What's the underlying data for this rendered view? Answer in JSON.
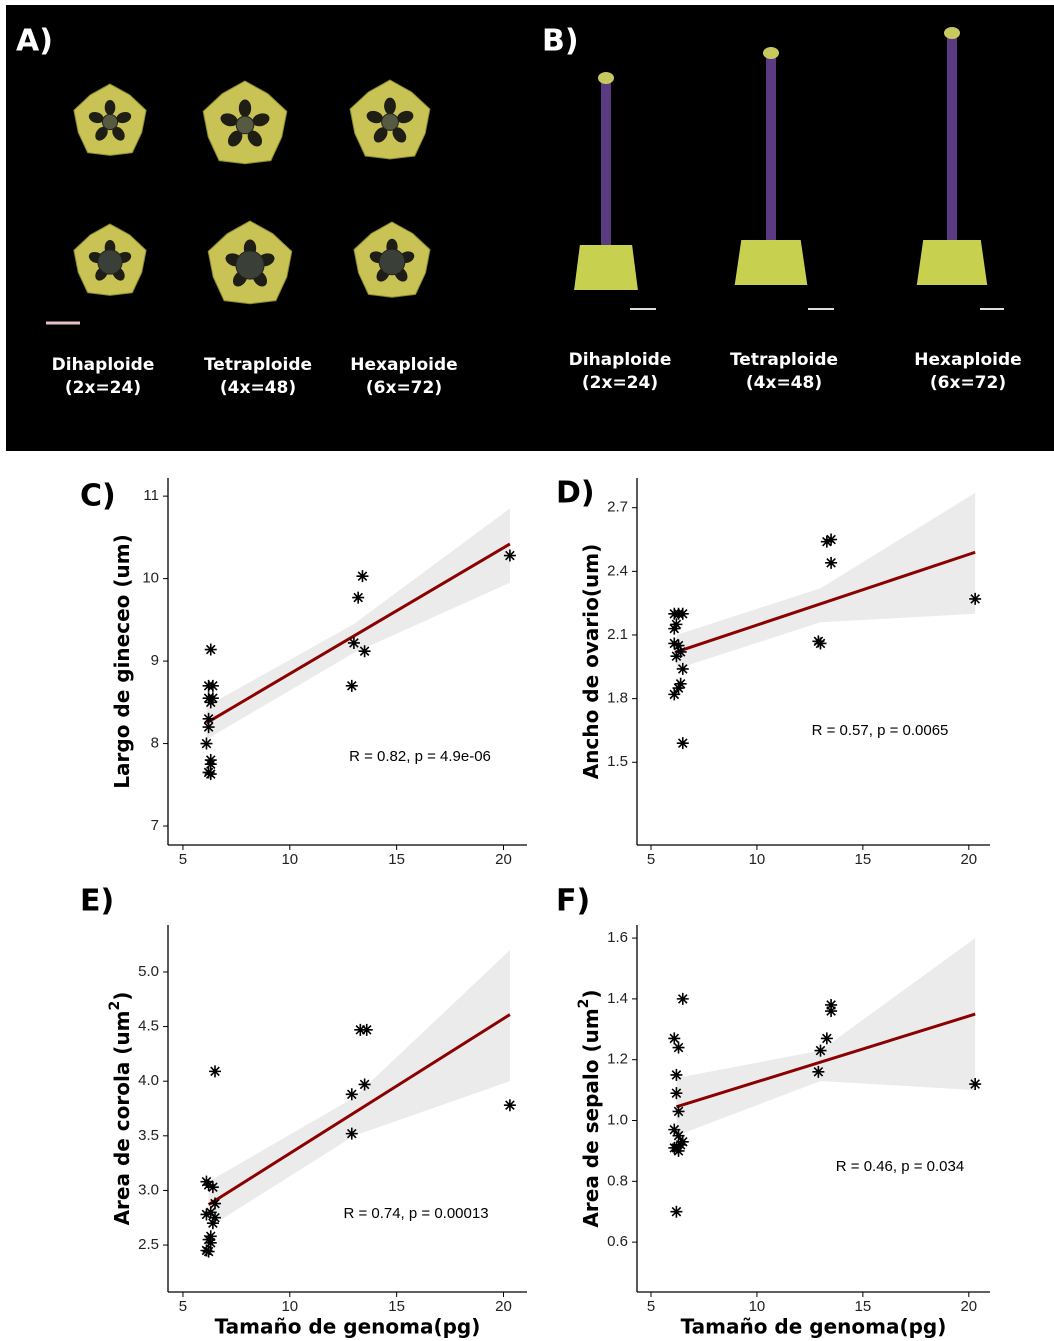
{
  "photo_panels": [
    {
      "label": "A)",
      "items": [
        {
          "name": "Dihaploide",
          "ploidy": "(2x=24)"
        },
        {
          "name": "Tetraploide",
          "ploidy": "(4x=48)"
        },
        {
          "name": "Hexaploide",
          "ploidy": "(6x=72)"
        }
      ]
    },
    {
      "label": "B)",
      "items": [
        {
          "name": "Dihaploide",
          "ploidy": "(2x=24)"
        },
        {
          "name": "Tetraploide",
          "ploidy": "(4x=48)"
        },
        {
          "name": "Hexaploide",
          "ploidy": "(6x=72)"
        }
      ]
    }
  ],
  "chart_data": [
    {
      "type": "scatter",
      "label": "C)",
      "ylabel": "Largo de gineceo (um)",
      "annotation": "R = 0.82, p = 4.9e-06",
      "color": "#000000",
      "x": [
        6.3,
        6.2,
        6.4,
        6.2,
        6.3,
        6.4,
        6.2,
        6.2,
        6.1,
        6.3,
        6.3,
        6.2,
        6.3,
        12.9,
        13.0,
        13.2,
        13.4,
        13.5,
        20.3
      ],
      "y": [
        9.14,
        8.7,
        8.7,
        8.55,
        8.5,
        8.55,
        8.3,
        8.2,
        8.0,
        7.8,
        7.75,
        7.65,
        7.63,
        8.7,
        9.22,
        9.77,
        10.03,
        9.12,
        10.28
      ],
      "fit": {
        "color": "#8b0000",
        "x": [
          6.1,
          20.3
        ],
        "y": [
          8.25,
          10.42
        ]
      },
      "band": {
        "color": "#ebebeb",
        "x": [
          6.1,
          13,
          20.3
        ],
        "upper": [
          8.45,
          9.45,
          10.85
        ],
        "lower": [
          8.05,
          9.1,
          9.95
        ]
      },
      "xlim": [
        4.3,
        21.1
      ],
      "ylim": [
        6.77,
        11.22
      ],
      "xticks": [
        5,
        10,
        15,
        20
      ],
      "yticks": [
        7,
        8,
        9,
        10,
        11
      ]
    },
    {
      "type": "scatter",
      "label": "D)",
      "ylabel": "Ancho de ovario(um)",
      "annotation": "R = 0.57, p = 0.0065",
      "color": "#000000",
      "x": [
        6.1,
        6.3,
        6.5,
        6.2,
        6.1,
        6.1,
        6.3,
        6.4,
        6.2,
        6.5,
        6.4,
        6.3,
        6.1,
        6.5,
        12.9,
        13.0,
        13.3,
        13.5,
        13.5,
        20.3
      ],
      "y": [
        2.2,
        2.2,
        2.2,
        2.15,
        2.13,
        2.06,
        2.05,
        2.02,
        2.0,
        1.94,
        1.87,
        1.85,
        1.82,
        1.59,
        2.07,
        2.06,
        2.54,
        2.55,
        2.44,
        2.27
      ],
      "fit": {
        "color": "#8b0000",
        "x": [
          6.2,
          20.3
        ],
        "y": [
          2.02,
          2.49
        ]
      },
      "band": {
        "color": "#ebebeb",
        "x": [
          6.2,
          13,
          20.3
        ],
        "upper": [
          2.1,
          2.32,
          2.77
        ],
        "lower": [
          1.94,
          2.16,
          2.2
        ]
      },
      "xlim": [
        4.34,
        21.0
      ],
      "ylim": [
        1.11,
        2.84
      ],
      "xticks": [
        5,
        10,
        15,
        20
      ],
      "yticks": [
        1.5,
        1.8,
        2.1,
        2.4,
        2.7
      ]
    },
    {
      "type": "scatter",
      "label": "E)",
      "ylabel": "Area de corola (um",
      "ylabel_sup": "2",
      "ylabel_end": ")",
      "xlabel": "Tamaño de genoma(pg)",
      "annotation": "R = 0.74, p = 0.00013",
      "color": "#000000",
      "x": [
        6.5,
        6.1,
        6.2,
        6.4,
        6.5,
        6.3,
        6.1,
        6.5,
        6.4,
        6.3,
        6.2,
        6.3,
        6.1,
        6.2,
        12.9,
        12.9,
        13.5,
        13.3,
        13.6,
        20.3
      ],
      "y": [
        4.09,
        3.08,
        3.05,
        3.03,
        2.88,
        2.8,
        2.78,
        2.75,
        2.7,
        2.58,
        2.55,
        2.52,
        2.45,
        2.44,
        3.52,
        3.88,
        3.97,
        4.47,
        4.47,
        3.78
      ],
      "fit": {
        "color": "#8b0000",
        "x": [
          6.2,
          20.3
        ],
        "y": [
          2.87,
          4.61
        ]
      },
      "band": {
        "color": "#ebebeb",
        "x": [
          6.2,
          13,
          20.3
        ],
        "upper": [
          3.08,
          3.85,
          5.2
        ],
        "lower": [
          2.66,
          3.5,
          4.0
        ]
      },
      "xlim": [
        4.3,
        21.1
      ],
      "ylim": [
        2.07,
        5.43
      ],
      "xticks": [
        5,
        10,
        15,
        20
      ],
      "yticks": [
        {
          "value": 2.5,
          "label": "2.5"
        },
        {
          "value": 3,
          "label": "3.0"
        },
        {
          "value": 3.5,
          "label": "3.5"
        },
        {
          "value": 4,
          "label": "4.0"
        },
        {
          "value": 4.5,
          "label": "4.5"
        },
        {
          "value": 5,
          "label": "5.0"
        }
      ]
    },
    {
      "type": "scatter",
      "label": "F)",
      "ylabel": "Area de sepalo (um",
      "ylabel_sup": "2",
      "ylabel_end": ")",
      "xlabel": "Tamaño de genoma(pg)",
      "annotation": "R = 0.46, p = 0.034",
      "color": "#000000",
      "x": [
        6.5,
        6.1,
        6.3,
        6.2,
        6.2,
        6.3,
        6.1,
        6.3,
        6.5,
        6.4,
        6.2,
        6.3,
        6.1,
        6.2,
        12.9,
        13.0,
        13.3,
        13.5,
        13.5,
        20.3
      ],
      "y": [
        1.4,
        1.27,
        1.24,
        1.15,
        1.09,
        1.03,
        0.97,
        0.95,
        0.93,
        0.92,
        0.91,
        0.9,
        0.91,
        0.7,
        1.16,
        1.23,
        1.27,
        1.38,
        1.36,
        1.12
      ],
      "fit": {
        "color": "#8b0000",
        "x": [
          6.2,
          20.3
        ],
        "y": [
          1.045,
          1.35
        ]
      },
      "band": {
        "color": "#ebebeb",
        "x": [
          6.2,
          13,
          20.3
        ],
        "upper": [
          1.14,
          1.23,
          1.6
        ],
        "lower": [
          0.95,
          1.13,
          1.1
        ]
      },
      "xlim": [
        4.34,
        21.0
      ],
      "ylim": [
        0.436,
        1.643
      ],
      "xticks": [
        5,
        10,
        15,
        20
      ],
      "yticks": [
        0.6,
        0.8,
        {
          "value": 1,
          "label": "1.0"
        },
        1.2,
        1.4,
        1.6
      ]
    }
  ]
}
